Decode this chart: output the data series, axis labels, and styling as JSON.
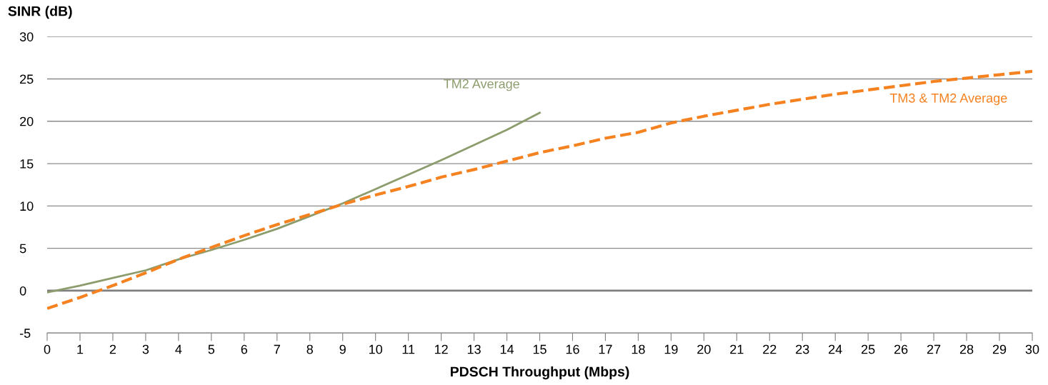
{
  "chart_data": {
    "type": "line",
    "xlabel": "PDSCH Throughput (Mbps)",
    "ylabel": "SINR (dB)",
    "xlim": [
      0,
      30
    ],
    "xticks": [
      0,
      1,
      2,
      3,
      4,
      5,
      6,
      7,
      8,
      9,
      10,
      11,
      12,
      13,
      14,
      15,
      16,
      17,
      18,
      19,
      20,
      21,
      22,
      23,
      24,
      25,
      26,
      27,
      28,
      29,
      30
    ],
    "ylim": [
      -5,
      30
    ],
    "yticks": [
      -5,
      0,
      5,
      10,
      15,
      20,
      25,
      30
    ],
    "grid": "y",
    "legend": false,
    "marker": "none",
    "ref_lines": [
      {
        "axis": "y",
        "value": 0,
        "color": "#7f7f7f"
      }
    ],
    "series": [
      {
        "name": "TM2 Average",
        "color": "#8c9c6c",
        "line_style": "solid",
        "x": [
          0,
          1,
          2,
          3,
          4,
          5,
          6,
          7,
          8,
          9,
          10,
          11,
          12,
          13,
          14,
          15
        ],
        "values": [
          -0.2,
          0.6,
          1.5,
          2.4,
          3.7,
          4.8,
          6.0,
          7.3,
          8.8,
          10.3,
          12.0,
          13.7,
          15.4,
          17.2,
          19.0,
          21.0
        ]
      },
      {
        "name": "TM3 & TM2 Average",
        "color": "#f58220",
        "line_style": "dashed",
        "x": [
          0,
          1,
          2,
          3,
          4,
          5,
          6,
          7,
          8,
          9,
          10,
          11,
          12,
          13,
          14,
          15,
          16,
          17,
          18,
          19,
          20,
          21,
          22,
          23,
          24,
          25,
          26,
          27,
          28,
          29,
          30
        ],
        "values": [
          -2.1,
          -0.8,
          0.6,
          2.1,
          3.7,
          5.1,
          6.5,
          7.8,
          9.0,
          10.2,
          11.3,
          12.3,
          13.4,
          14.3,
          15.3,
          16.3,
          17.1,
          18.0,
          18.7,
          19.8,
          20.6,
          21.3,
          22.0,
          22.6,
          23.2,
          23.7,
          24.2,
          24.7,
          25.1,
          25.5,
          25.9
        ]
      }
    ]
  }
}
